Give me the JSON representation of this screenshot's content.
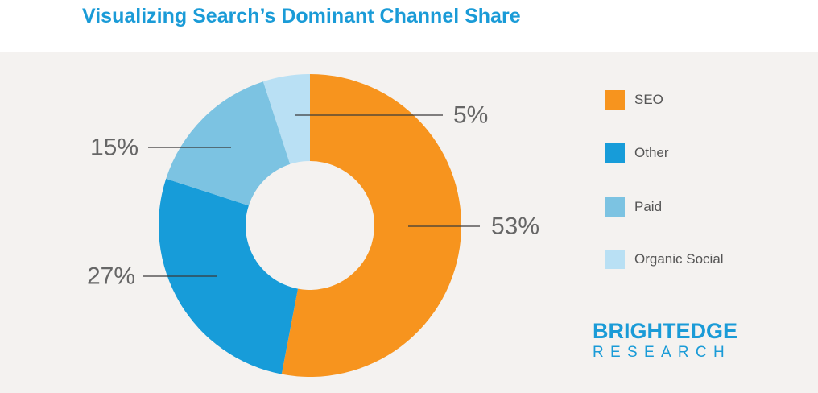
{
  "title": "Visualizing Search’s Dominant Channel Share",
  "chart_data": {
    "type": "pie",
    "categories": [
      "SEO",
      "Other",
      "Paid",
      "Organic Social"
    ],
    "values": [
      53,
      27,
      15,
      5
    ],
    "data_labels": [
      "53%",
      "27%",
      "15%",
      "5%"
    ],
    "colors": [
      "#f7941e",
      "#179cd9",
      "#7cc3e2",
      "#b9e0f4"
    ],
    "legend_position": "right",
    "donut": true
  },
  "brand": {
    "line1": "BRIGHTEDGE",
    "line2": "RESEARCH"
  }
}
